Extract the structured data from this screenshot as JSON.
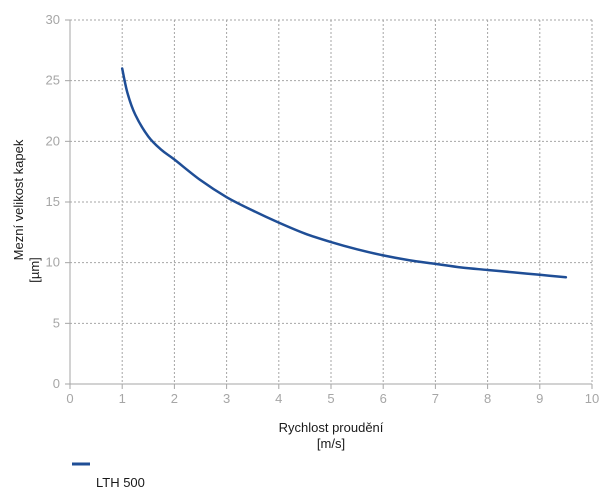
{
  "chart_data": {
    "type": "line",
    "xlabel_line1": "Rychlost proudění",
    "xlabel_line2": "[m/s]",
    "ylabel_line1": "Mezní velikost kapek",
    "ylabel_line2": "[µm]",
    "xlim": [
      0,
      10
    ],
    "ylim": [
      0,
      30
    ],
    "xticks": [
      0,
      1,
      2,
      3,
      4,
      5,
      6,
      7,
      8,
      9,
      10
    ],
    "yticks": [
      0,
      5,
      10,
      15,
      20,
      25,
      30
    ],
    "grid": true,
    "legend_position": "bottom-left",
    "series": [
      {
        "name": "LTH 500",
        "color": "#1f4e96",
        "x": [
          1.0,
          1.1,
          1.25,
          1.5,
          1.75,
          2.0,
          2.5,
          3.0,
          3.5,
          4.0,
          4.5,
          5.0,
          5.5,
          6.0,
          6.5,
          7.0,
          7.5,
          8.0,
          8.5,
          9.0,
          9.5
        ],
        "y": [
          26.0,
          24.0,
          22.2,
          20.4,
          19.3,
          18.5,
          16.8,
          15.4,
          14.3,
          13.3,
          12.4,
          11.7,
          11.1,
          10.6,
          10.2,
          9.9,
          9.6,
          9.4,
          9.2,
          9.0,
          8.8
        ]
      }
    ]
  }
}
